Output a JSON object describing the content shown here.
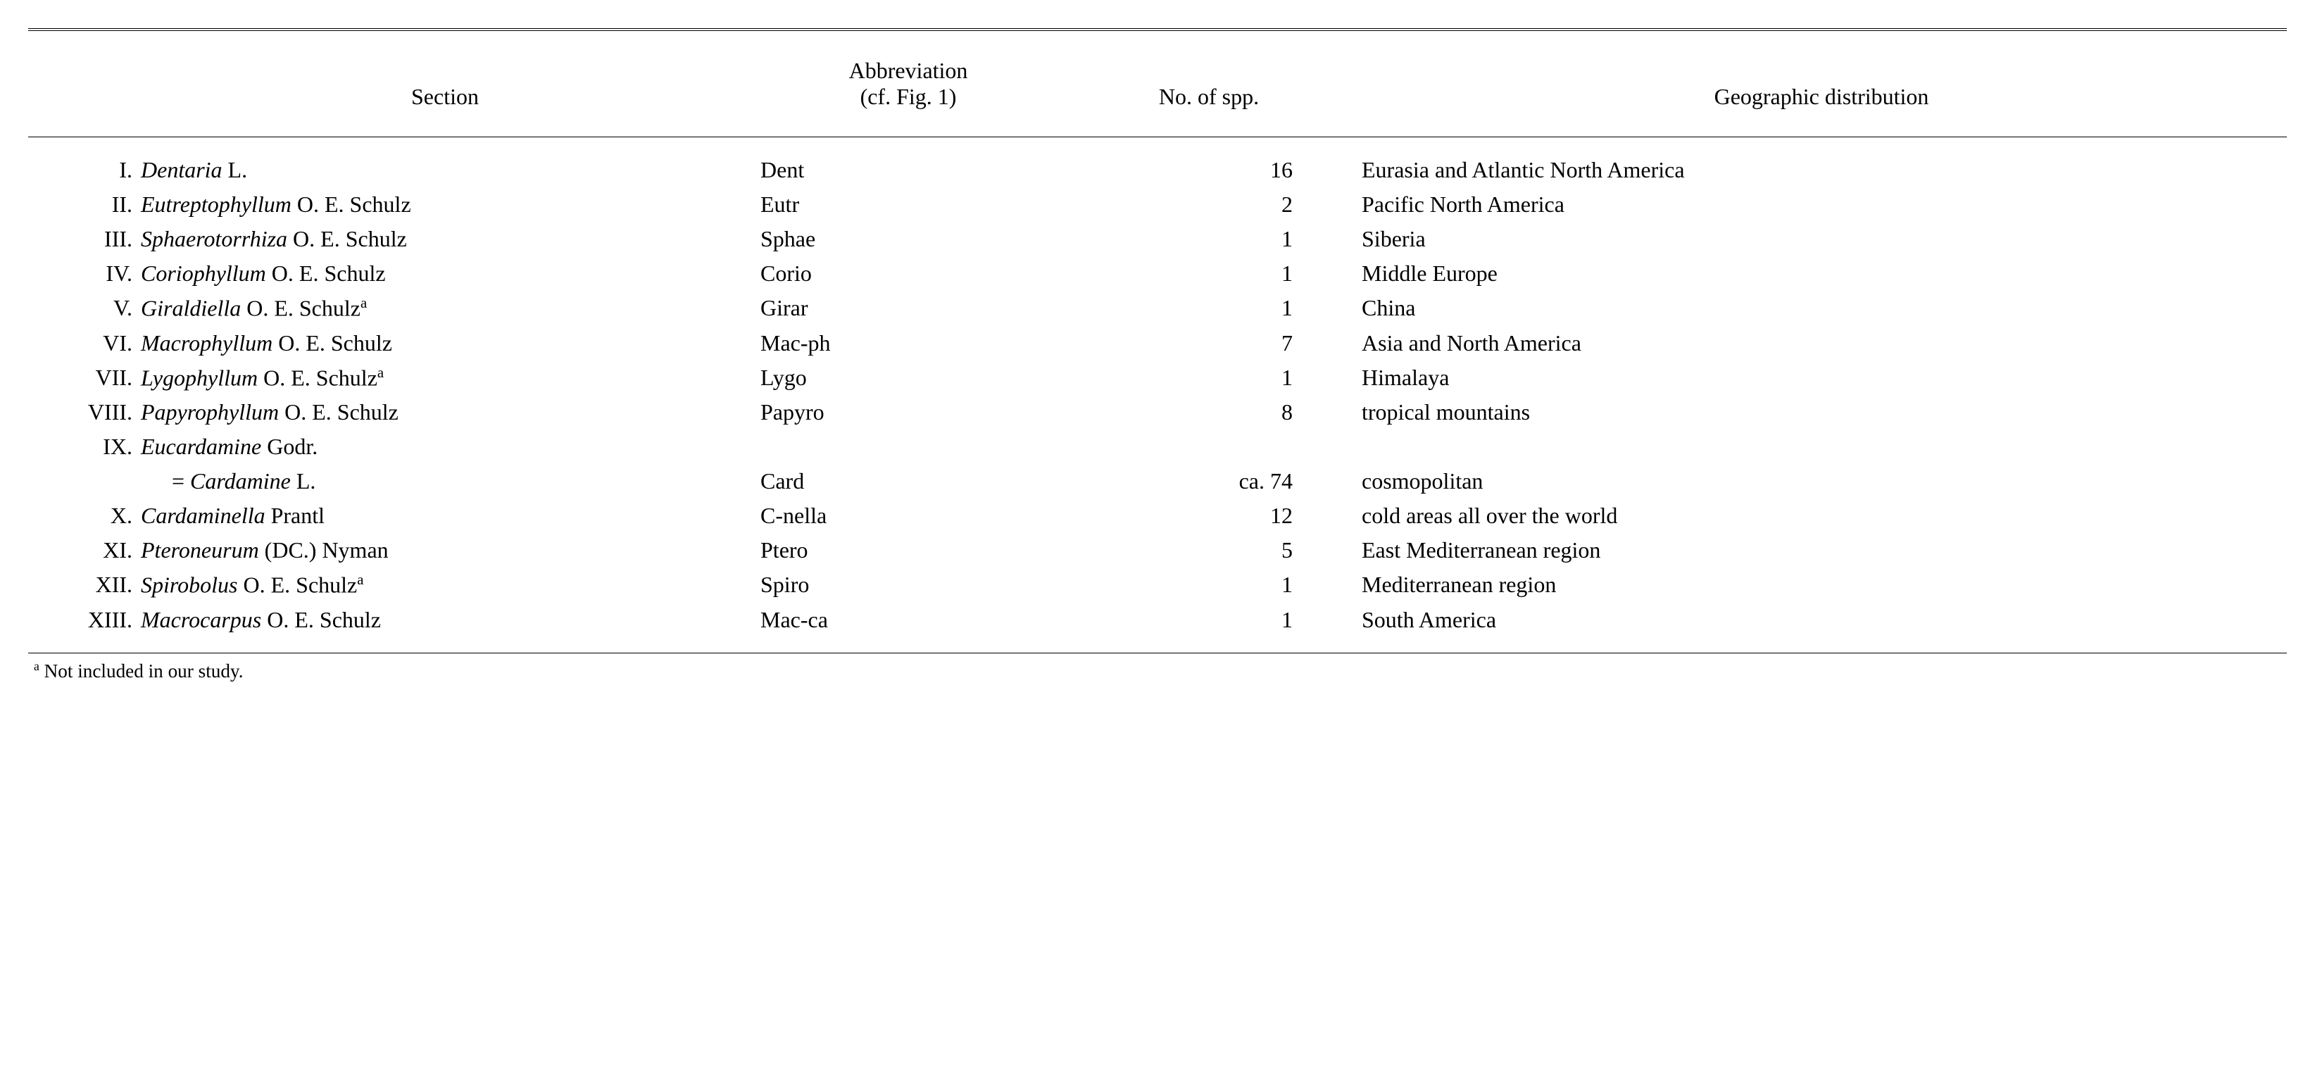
{
  "header": {
    "section": "Section",
    "abbrev_line1": "Abbreviation",
    "abbrev_line2": "(cf. Fig. 1)",
    "spp": "No. of spp.",
    "geo": "Geographic distribution"
  },
  "rows": [
    {
      "roman": "I.",
      "taxon": "Dentaria",
      "author": " L.",
      "note": "",
      "abbrev": "Dent",
      "spp": "16",
      "geo": "Eurasia and Atlantic North America"
    },
    {
      "roman": "II.",
      "taxon": "Eutreptophyllum",
      "author": " O. E. Schulz",
      "note": "",
      "abbrev": "Eutr",
      "spp": "2",
      "geo": "Pacific North America"
    },
    {
      "roman": "III.",
      "taxon": "Sphaerotorrhiza",
      "author": " O. E. Schulz",
      "note": "",
      "abbrev": "Sphae",
      "spp": "1",
      "geo": "Siberia"
    },
    {
      "roman": "IV.",
      "taxon": "Coriophyllum",
      "author": " O. E. Schulz",
      "note": "",
      "abbrev": "Corio",
      "spp": "1",
      "geo": "Middle Europe"
    },
    {
      "roman": "V.",
      "taxon": "Giraldiella",
      "author": " O. E. Schulz",
      "note": "a",
      "abbrev": "Girar",
      "spp": "1",
      "geo": "China"
    },
    {
      "roman": "VI.",
      "taxon": "Macrophyllum",
      "author": " O. E. Schulz",
      "note": "",
      "abbrev": "Mac-ph",
      "spp": "7",
      "geo": "Asia and North America"
    },
    {
      "roman": "VII.",
      "taxon": "Lygophyllum",
      "author": " O. E. Schulz",
      "note": "a",
      "abbrev": "Lygo",
      "spp": "1",
      "geo": "Himalaya"
    },
    {
      "roman": "VIII.",
      "taxon": "Papyrophyllum",
      "author": " O. E. Schulz",
      "note": "",
      "abbrev": "Papyro",
      "spp": "8",
      "geo": "tropical mountains"
    },
    {
      "roman": "IX.",
      "taxon": "Eucardamine",
      "author": " Godr.",
      "note": "",
      "abbrev": "",
      "spp": "",
      "geo": ""
    }
  ],
  "row_ix_sub": {
    "eq": "= ",
    "taxon": "Cardamine",
    "author": " L.",
    "abbrev": "Card",
    "spp": "ca. 74",
    "geo": "cosmopolitan"
  },
  "rows2": [
    {
      "roman": "X.",
      "taxon": "Cardaminella",
      "author": " Prantl",
      "note": "",
      "abbrev": "C-nella",
      "spp": "12",
      "geo": "cold areas all over the world"
    },
    {
      "roman": "XI.",
      "taxon": "Pteroneurum",
      "author": " (DC.) Nyman",
      "note": "",
      "abbrev": "Ptero",
      "spp": "5",
      "geo": "East Mediterranean region"
    },
    {
      "roman": "XII.",
      "taxon": "Spirobolus",
      "author": " O. E. Schulz",
      "note": "a",
      "abbrev": "Spiro",
      "spp": "1",
      "geo": "Mediterranean region"
    },
    {
      "roman": "XIII.",
      "taxon": "Macrocarpus",
      "author": " O. E. Schulz",
      "note": "",
      "abbrev": "Mac-ca",
      "spp": "1",
      "geo": "South America"
    }
  ],
  "footnote": {
    "marker": "a",
    "text": " Not included in our study."
  }
}
